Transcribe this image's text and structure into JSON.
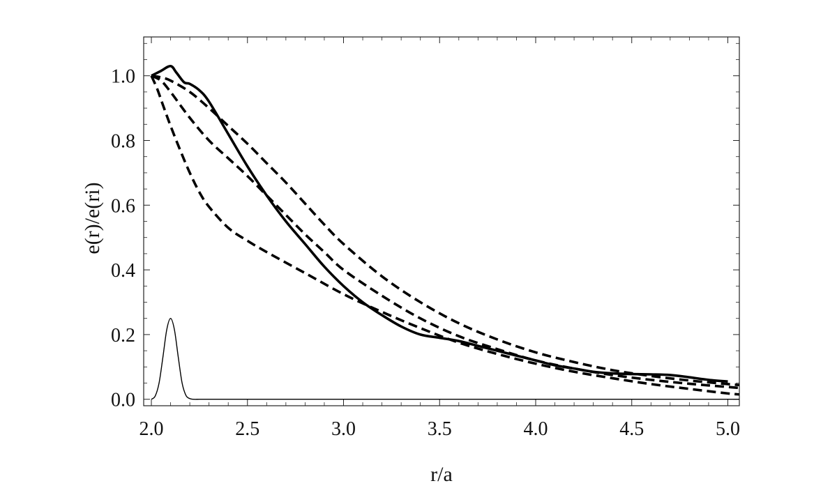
{
  "chart_data": {
    "type": "line",
    "title": "",
    "xlabel": "r/a",
    "ylabel": "e(r)/e(ri)",
    "xlim": [
      1.96,
      5.06
    ],
    "ylim": [
      -0.02,
      1.12
    ],
    "grid": false,
    "legend": "none",
    "x_ticks": [
      "2.0",
      "2.5",
      "3.0",
      "3.5",
      "4.0",
      "4.5",
      "5.0"
    ],
    "y_ticks": [
      "0.0",
      "0.2",
      "0.4",
      "0.6",
      "0.8",
      "1.0"
    ],
    "series": [
      {
        "style": "solid-thick",
        "x": [
          2.0,
          2.05,
          2.1,
          2.13,
          2.17,
          2.2,
          2.25,
          2.3,
          2.4,
          2.5,
          2.6,
          2.7,
          2.8,
          2.9,
          3.0,
          3.1,
          3.2,
          3.3,
          3.4,
          3.5,
          3.6,
          3.7,
          3.8,
          3.9,
          4.0,
          4.1,
          4.2,
          4.3,
          4.4,
          4.5,
          4.6,
          4.7,
          4.8,
          4.9,
          5.0
        ],
        "y": [
          1.0,
          1.015,
          1.03,
          1.01,
          0.98,
          0.975,
          0.955,
          0.92,
          0.82,
          0.72,
          0.63,
          0.55,
          0.48,
          0.41,
          0.35,
          0.3,
          0.26,
          0.225,
          0.2,
          0.19,
          0.18,
          0.165,
          0.15,
          0.135,
          0.12,
          0.105,
          0.095,
          0.085,
          0.08,
          0.078,
          0.077,
          0.075,
          0.068,
          0.06,
          0.055
        ]
      },
      {
        "style": "dashed",
        "x": [
          2.0,
          2.05,
          2.1,
          2.2,
          2.3,
          2.4,
          2.5,
          2.6,
          2.7,
          2.8,
          2.9,
          3.0,
          3.2,
          3.4,
          3.6,
          3.8,
          4.0,
          4.2,
          4.4,
          4.6,
          4.8,
          5.0,
          5.06
        ],
        "y": [
          1.0,
          0.995,
          0.985,
          0.95,
          0.9,
          0.845,
          0.79,
          0.73,
          0.67,
          0.605,
          0.54,
          0.48,
          0.38,
          0.3,
          0.235,
          0.185,
          0.145,
          0.115,
          0.09,
          0.072,
          0.058,
          0.047,
          0.044
        ]
      },
      {
        "style": "dashed",
        "x": [
          2.0,
          2.05,
          2.1,
          2.2,
          2.3,
          2.4,
          2.5,
          2.6,
          2.7,
          2.8,
          2.9,
          3.0,
          3.2,
          3.4,
          3.6,
          3.8,
          4.0,
          4.2,
          4.4,
          4.6,
          4.8,
          5.0,
          5.06
        ],
        "y": [
          1.0,
          0.985,
          0.95,
          0.87,
          0.8,
          0.745,
          0.69,
          0.63,
          0.57,
          0.51,
          0.455,
          0.4,
          0.32,
          0.25,
          0.195,
          0.155,
          0.12,
          0.095,
          0.075,
          0.06,
          0.048,
          0.038,
          0.035
        ]
      },
      {
        "style": "dashed",
        "x": [
          2.0,
          2.03,
          2.06,
          2.1,
          2.15,
          2.2,
          2.25,
          2.3,
          2.4,
          2.5,
          2.6,
          2.8,
          3.0,
          3.2,
          3.4,
          3.6,
          3.8,
          4.0,
          4.2,
          4.4,
          4.6,
          4.8,
          5.0,
          5.06
        ],
        "y": [
          1.0,
          0.96,
          0.91,
          0.845,
          0.77,
          0.7,
          0.64,
          0.595,
          0.53,
          0.49,
          0.455,
          0.39,
          0.325,
          0.27,
          0.22,
          0.175,
          0.14,
          0.11,
          0.085,
          0.065,
          0.047,
          0.032,
          0.018,
          0.015
        ]
      },
      {
        "style": "solid-thin",
        "x": [
          2.0,
          2.02,
          2.04,
          2.06,
          2.08,
          2.1,
          2.12,
          2.14,
          2.16,
          2.18,
          2.2,
          2.22,
          2.25,
          2.3,
          2.5,
          3.0,
          3.5,
          4.0,
          4.5,
          5.0,
          5.06
        ],
        "y": [
          0.0,
          0.01,
          0.05,
          0.13,
          0.215,
          0.25,
          0.215,
          0.13,
          0.05,
          0.012,
          0.002,
          0.0,
          0.0,
          0.0,
          0.0,
          0.0,
          0.0,
          0.0,
          0.0,
          0.0,
          0.0
        ]
      }
    ]
  }
}
